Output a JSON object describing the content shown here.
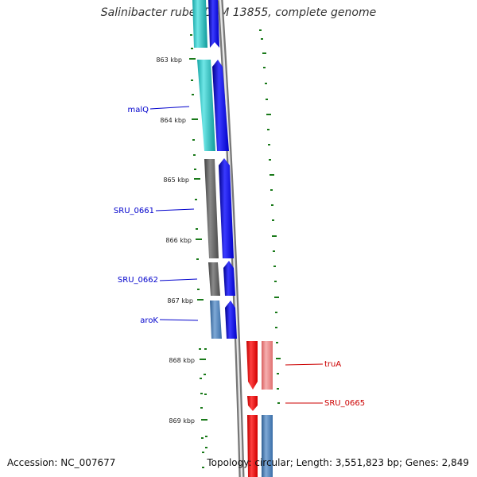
{
  "title": "Salinibacter ruber DSM 13855, complete genome",
  "footer": {
    "accession": "Accession: NC_007677",
    "topology": "Topology: circular; Length: 3,551,823 bp; Genes: 2,849"
  },
  "ticks": [
    {
      "label": "863 kbp"
    },
    {
      "label": "864 kbp"
    },
    {
      "label": "865 kbp"
    },
    {
      "label": "866 kbp"
    },
    {
      "label": "867 kbp"
    },
    {
      "label": "868 kbp"
    },
    {
      "label": "869 kbp"
    }
  ],
  "genes": [
    {
      "name": "malQ",
      "strand": "reverse"
    },
    {
      "name": "SRU_0661",
      "strand": "reverse"
    },
    {
      "name": "SRU_0662",
      "strand": "reverse"
    },
    {
      "name": "aroK",
      "strand": "reverse"
    },
    {
      "name": "truA",
      "strand": "forward"
    },
    {
      "name": "SRU_0665",
      "strand": "forward"
    }
  ],
  "colors": {
    "reverse_label": "#0000cc",
    "forward_label": "#cc0000",
    "reverse_cds": "#0000ee",
    "forward_cds": "#ee0000",
    "tick": "#1a7a1a",
    "backbone": "#888888"
  }
}
